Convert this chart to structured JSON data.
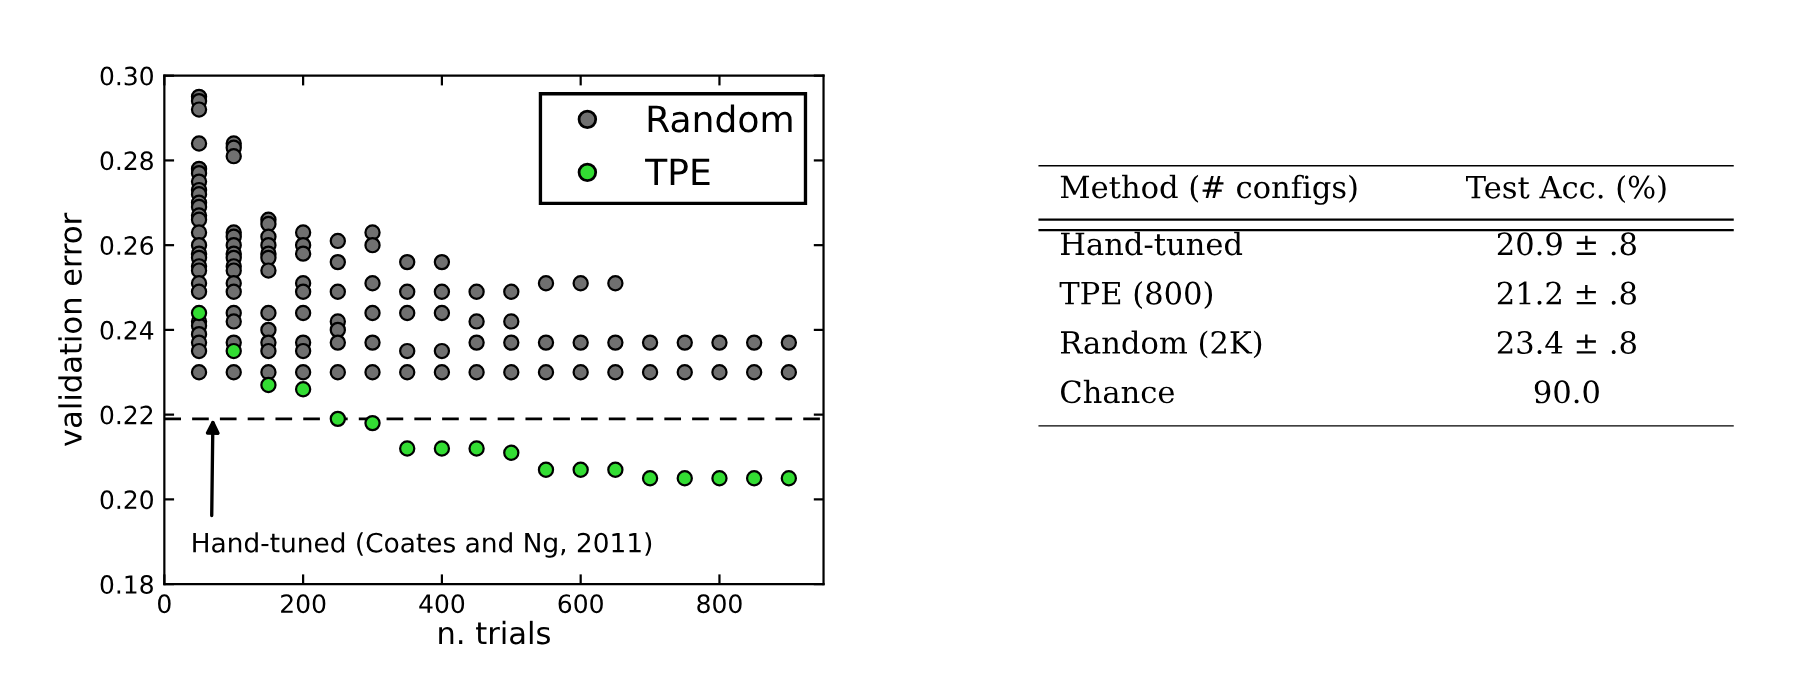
{
  "chart_data": [
    {
      "type": "scatter",
      "xlabel": "n. trials",
      "ylabel": "validation error",
      "xlim": [
        0,
        950
      ],
      "xticks": [
        0,
        200,
        400,
        600,
        800
      ],
      "ylim": [
        0.18,
        0.3
      ],
      "yticks": [
        {
          "value": 0.18,
          "label": "0.18"
        },
        {
          "value": 0.2,
          "label": "0.20"
        },
        {
          "value": 0.22,
          "label": "0.22"
        },
        {
          "value": 0.24,
          "label": "0.24"
        },
        {
          "value": 0.26,
          "label": "0.26"
        },
        {
          "value": 0.28,
          "label": "0.28"
        },
        {
          "value": 0.3,
          "label": "0.30"
        }
      ],
      "marker": "circle",
      "legend": "top right",
      "grid": false,
      "series": [
        {
          "name": "Random",
          "color": "#707070",
          "x": [
            50,
            50,
            50,
            50,
            50,
            50,
            50,
            50,
            50,
            50,
            50,
            50,
            50,
            50,
            50,
            50,
            50,
            50,
            50,
            50,
            50,
            50,
            50,
            50,
            50,
            50,
            50,
            100,
            100,
            100,
            100,
            100,
            100,
            100,
            100,
            100,
            100,
            100,
            100,
            100,
            100,
            100,
            100,
            150,
            150,
            150,
            150,
            150,
            150,
            150,
            150,
            150,
            150,
            150,
            150,
            200,
            200,
            200,
            200,
            200,
            200,
            200,
            200,
            200,
            250,
            250,
            250,
            250,
            250,
            250,
            250,
            300,
            300,
            300,
            300,
            300,
            300,
            350,
            350,
            350,
            350,
            350,
            400,
            400,
            400,
            400,
            400,
            450,
            450,
            450,
            450,
            500,
            500,
            500,
            500,
            550,
            550,
            550,
            600,
            600,
            600,
            650,
            650,
            650,
            700,
            700,
            750,
            750,
            800,
            800,
            850,
            850,
            900,
            900
          ],
          "values": [
            0.295,
            0.294,
            0.292,
            0.284,
            0.278,
            0.277,
            0.275,
            0.273,
            0.272,
            0.27,
            0.269,
            0.267,
            0.266,
            0.263,
            0.26,
            0.258,
            0.257,
            0.255,
            0.254,
            0.251,
            0.249,
            0.242,
            0.241,
            0.239,
            0.237,
            0.235,
            0.23,
            0.284,
            0.283,
            0.281,
            0.263,
            0.262,
            0.26,
            0.258,
            0.257,
            0.255,
            0.254,
            0.251,
            0.249,
            0.244,
            0.242,
            0.237,
            0.23,
            0.266,
            0.265,
            0.262,
            0.26,
            0.258,
            0.257,
            0.254,
            0.244,
            0.24,
            0.237,
            0.235,
            0.23,
            0.263,
            0.26,
            0.258,
            0.251,
            0.249,
            0.244,
            0.237,
            0.235,
            0.23,
            0.261,
            0.256,
            0.249,
            0.242,
            0.24,
            0.237,
            0.23,
            0.263,
            0.26,
            0.251,
            0.244,
            0.237,
            0.23,
            0.256,
            0.249,
            0.244,
            0.235,
            0.23,
            0.256,
            0.249,
            0.244,
            0.235,
            0.23,
            0.249,
            0.242,
            0.237,
            0.23,
            0.249,
            0.242,
            0.237,
            0.23,
            0.251,
            0.237,
            0.23,
            0.251,
            0.237,
            0.23,
            0.251,
            0.237,
            0.23,
            0.237,
            0.23,
            0.237,
            0.23,
            0.237,
            0.23,
            0.237,
            0.23,
            0.237,
            0.23
          ]
        },
        {
          "name": "TPE",
          "color": "#33dd33",
          "x": [
            50,
            100,
            150,
            200,
            250,
            300,
            350,
            400,
            450,
            500,
            550,
            600,
            650,
            700,
            750,
            800,
            850,
            900
          ],
          "values": [
            0.244,
            0.235,
            0.227,
            0.226,
            0.219,
            0.218,
            0.212,
            0.212,
            0.212,
            0.211,
            0.207,
            0.207,
            0.207,
            0.205,
            0.205,
            0.205,
            0.205,
            0.205
          ]
        }
      ],
      "ref_lines": [
        {
          "axis": "y",
          "value": 0.219,
          "color": "#000000",
          "line_style": "dashed"
        }
      ],
      "annotations": [
        {
          "text": "Hand-tuned (Coates and Ng, 2011)",
          "x": 70,
          "y": 0.219
        }
      ]
    },
    {
      "type": "other",
      "annotations": [
        "Method (# configs)",
        "Test Acc. (%)",
        "Hand-tuned",
        "20.9 ± .8",
        "TPE (800)",
        "21.2 ± .8",
        "Random (2K)",
        "23.4 ± .8",
        "Chance",
        "90.0"
      ]
    }
  ]
}
